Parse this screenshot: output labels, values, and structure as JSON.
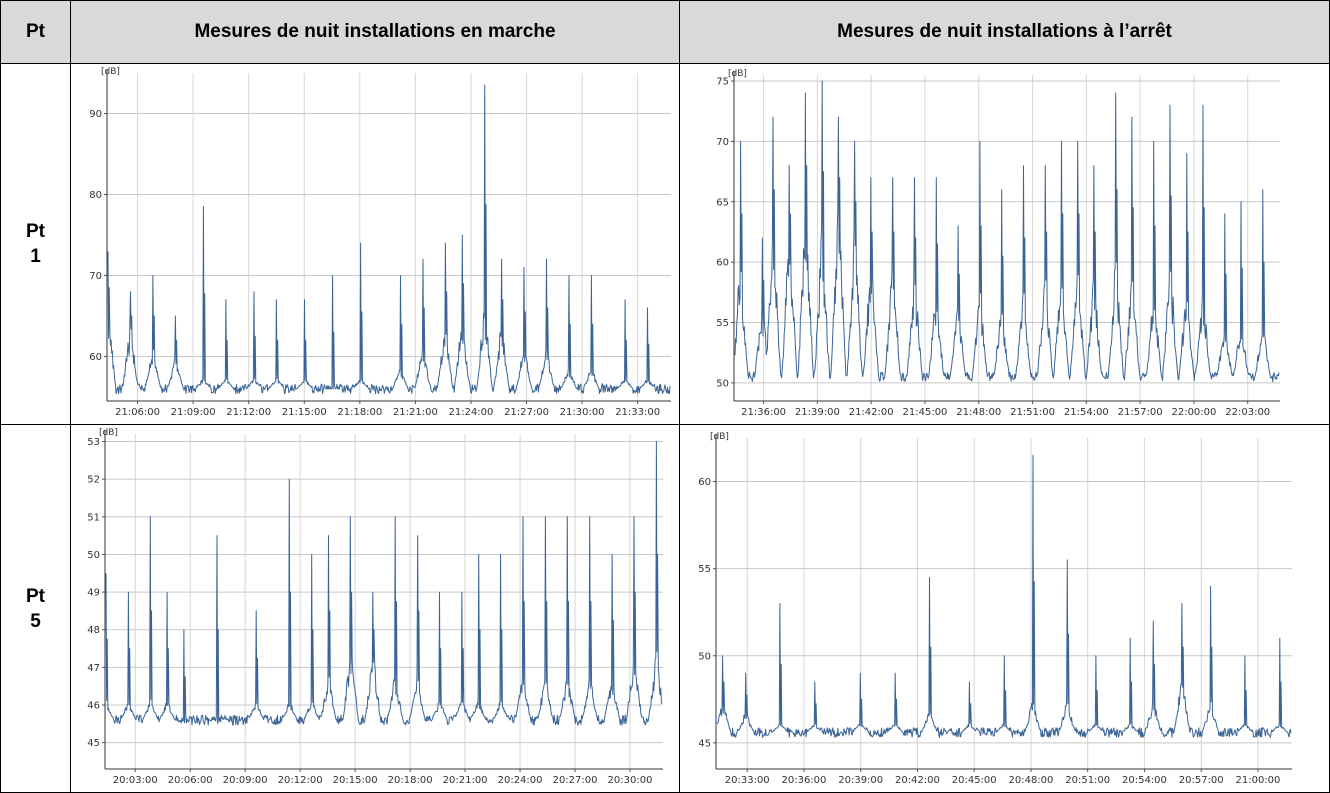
{
  "table": {
    "col_pt": "Pt",
    "col_on": "Mesures de nuit installations en marche",
    "col_off": "Mesures de nuit installations à l’arrêt",
    "rows": [
      {
        "label_line1": "Pt",
        "label_line2": "1"
      },
      {
        "label_line1": "Pt",
        "label_line2": "5"
      }
    ]
  },
  "chart_data": [
    {
      "type": "line",
      "ylabel": "[dB]",
      "ylim": [
        54.5,
        95
      ],
      "yticks": [
        60,
        70,
        80,
        90
      ],
      "xticks": [
        "21:06:00",
        "21:09:00",
        "21:12:00",
        "21:15:00",
        "21:18:00",
        "21:21:00",
        "21:24:00",
        "21:27:00",
        "21:30:00",
        "21:33:00"
      ],
      "color": "#3a6496",
      "baseline": 56,
      "bursts": [
        [
          0.0,
          64,
          73
        ],
        [
          0.04,
          62,
          68
        ],
        [
          0.08,
          60,
          70
        ],
        [
          0.12,
          59,
          65
        ],
        [
          0.17,
          57,
          78.5
        ],
        [
          0.21,
          57,
          67
        ],
        [
          0.26,
          57,
          68
        ],
        [
          0.3,
          57,
          67
        ],
        [
          0.35,
          57,
          67
        ],
        [
          0.4,
          56,
          70
        ],
        [
          0.45,
          57,
          74
        ],
        [
          0.52,
          58,
          70
        ],
        [
          0.56,
          60,
          72
        ],
        [
          0.6,
          62,
          74
        ],
        [
          0.63,
          63,
          75
        ],
        [
          0.67,
          64,
          93.5
        ],
        [
          0.7,
          62,
          72
        ],
        [
          0.74,
          60,
          71
        ],
        [
          0.78,
          60,
          72
        ],
        [
          0.82,
          58,
          70
        ],
        [
          0.86,
          58,
          70
        ],
        [
          0.92,
          57,
          67
        ],
        [
          0.96,
          57,
          66
        ]
      ]
    },
    {
      "type": "line",
      "ylabel": "[dB]",
      "ylim": [
        48.5,
        75.5
      ],
      "yticks": [
        50,
        55,
        60,
        65,
        70,
        75
      ],
      "xticks": [
        "21:36:00",
        "21:39:00",
        "21:42:00",
        "21:45:00",
        "21:48:00",
        "21:51:00",
        "21:54:00",
        "21:57:00",
        "22:00:00",
        "22:03:00"
      ],
      "color": "#3a6496",
      "baseline": 50.5,
      "bursts": [
        [
          0.01,
          58,
          70
        ],
        [
          0.05,
          55,
          62
        ],
        [
          0.07,
          60,
          72
        ],
        [
          0.1,
          60,
          68
        ],
        [
          0.13,
          62,
          74
        ],
        [
          0.16,
          60,
          75
        ],
        [
          0.19,
          62,
          72
        ],
        [
          0.22,
          60,
          70
        ],
        [
          0.25,
          58,
          67
        ],
        [
          0.29,
          58,
          67
        ],
        [
          0.33,
          57,
          67
        ],
        [
          0.37,
          56,
          67
        ],
        [
          0.41,
          55,
          63
        ],
        [
          0.45,
          56,
          70
        ],
        [
          0.49,
          55,
          66
        ],
        [
          0.53,
          56,
          68
        ],
        [
          0.57,
          57,
          68
        ],
        [
          0.6,
          58,
          70
        ],
        [
          0.63,
          58,
          70
        ],
        [
          0.66,
          57,
          68
        ],
        [
          0.7,
          58,
          74
        ],
        [
          0.73,
          57,
          72
        ],
        [
          0.77,
          56,
          70
        ],
        [
          0.8,
          58,
          73
        ],
        [
          0.83,
          56,
          69
        ],
        [
          0.86,
          56,
          73
        ],
        [
          0.9,
          54,
          64
        ],
        [
          0.93,
          54,
          65
        ],
        [
          0.97,
          54,
          66
        ]
      ]
    },
    {
      "type": "line",
      "ylabel": "[dB]",
      "ylim": [
        44.3,
        53.2
      ],
      "yticks": [
        45,
        46,
        47,
        48,
        49,
        50,
        51,
        52,
        53
      ],
      "xticks": [
        "20:03:00",
        "20:06:00",
        "20:09:00",
        "20:12:00",
        "20:15:00",
        "20:18:00",
        "20:21:00",
        "20:24:00",
        "20:27:00",
        "20:30:00"
      ],
      "color": "#3a6496",
      "baseline": 45.6,
      "bursts": [
        [
          0.0,
          46,
          49.5
        ],
        [
          0.04,
          46,
          49
        ],
        [
          0.08,
          46,
          51
        ],
        [
          0.11,
          46,
          49
        ],
        [
          0.14,
          45.5,
          48
        ],
        [
          0.2,
          45.5,
          50.5
        ],
        [
          0.27,
          46,
          48.5
        ],
        [
          0.33,
          46,
          52
        ],
        [
          0.37,
          46,
          50
        ],
        [
          0.4,
          46.5,
          50.5
        ],
        [
          0.44,
          47,
          51
        ],
        [
          0.48,
          47,
          49
        ],
        [
          0.52,
          46.5,
          51
        ],
        [
          0.56,
          46.5,
          50.5
        ],
        [
          0.6,
          46,
          49
        ],
        [
          0.64,
          46,
          49
        ],
        [
          0.67,
          46,
          50
        ],
        [
          0.71,
          46,
          50
        ],
        [
          0.75,
          46.5,
          51
        ],
        [
          0.79,
          46.5,
          51
        ],
        [
          0.83,
          46.5,
          51
        ],
        [
          0.87,
          46.5,
          51
        ],
        [
          0.91,
          46.5,
          50
        ],
        [
          0.95,
          47,
          51
        ],
        [
          0.99,
          47,
          53
        ]
      ]
    },
    {
      "type": "line",
      "ylabel": "[dB]",
      "ylim": [
        43.5,
        62.5
      ],
      "yticks": [
        45,
        50,
        55,
        60
      ],
      "xticks": [
        "20:33:00",
        "20:36:00",
        "20:39:00",
        "20:42:00",
        "20:45:00",
        "20:48:00",
        "20:51:00",
        "20:54:00",
        "20:57:00",
        "21:00:00"
      ],
      "color": "#3a6496",
      "baseline": 45.6,
      "bursts": [
        [
          0.01,
          47,
          50
        ],
        [
          0.05,
          46.5,
          49
        ],
        [
          0.11,
          46,
          53
        ],
        [
          0.17,
          46,
          48.5
        ],
        [
          0.25,
          46,
          49
        ],
        [
          0.31,
          46,
          49
        ],
        [
          0.37,
          46.5,
          54.5
        ],
        [
          0.44,
          46,
          48.5
        ],
        [
          0.5,
          46,
          50
        ],
        [
          0.55,
          47,
          61.5
        ],
        [
          0.61,
          47,
          55.5
        ],
        [
          0.66,
          46,
          50
        ],
        [
          0.72,
          46,
          51
        ],
        [
          0.76,
          47,
          52
        ],
        [
          0.81,
          48,
          53
        ],
        [
          0.86,
          47,
          54
        ],
        [
          0.92,
          46,
          50
        ],
        [
          0.98,
          46,
          51
        ]
      ]
    }
  ]
}
